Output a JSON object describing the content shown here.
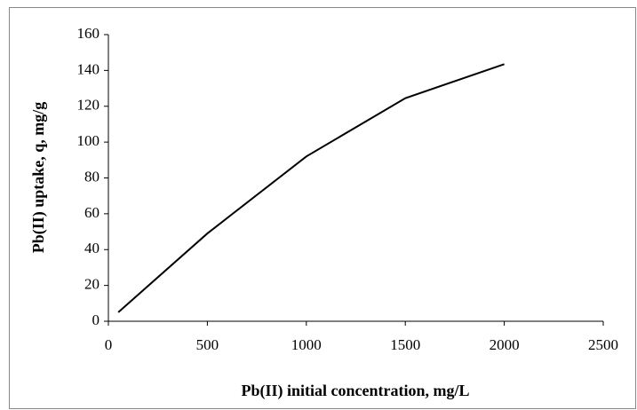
{
  "chart_data": {
    "type": "line",
    "x_label": "Pb(II) initial concentration, mg/L",
    "y_label": "Pb(II) uptake, q, mg/g",
    "x": [
      50,
      500,
      1000,
      1500,
      2000
    ],
    "series": [
      {
        "color": "#000000",
        "values": [
          5,
          49,
          92,
          124.5,
          143.5
        ]
      }
    ],
    "xlim": [
      0,
      2500
    ],
    "xticks": [
      0,
      500,
      1000,
      1500,
      2000,
      2500
    ],
    "ylim": [
      0,
      160
    ],
    "yticks": [
      0,
      20,
      40,
      60,
      80,
      100,
      120,
      140,
      160
    ],
    "grid": false
  }
}
